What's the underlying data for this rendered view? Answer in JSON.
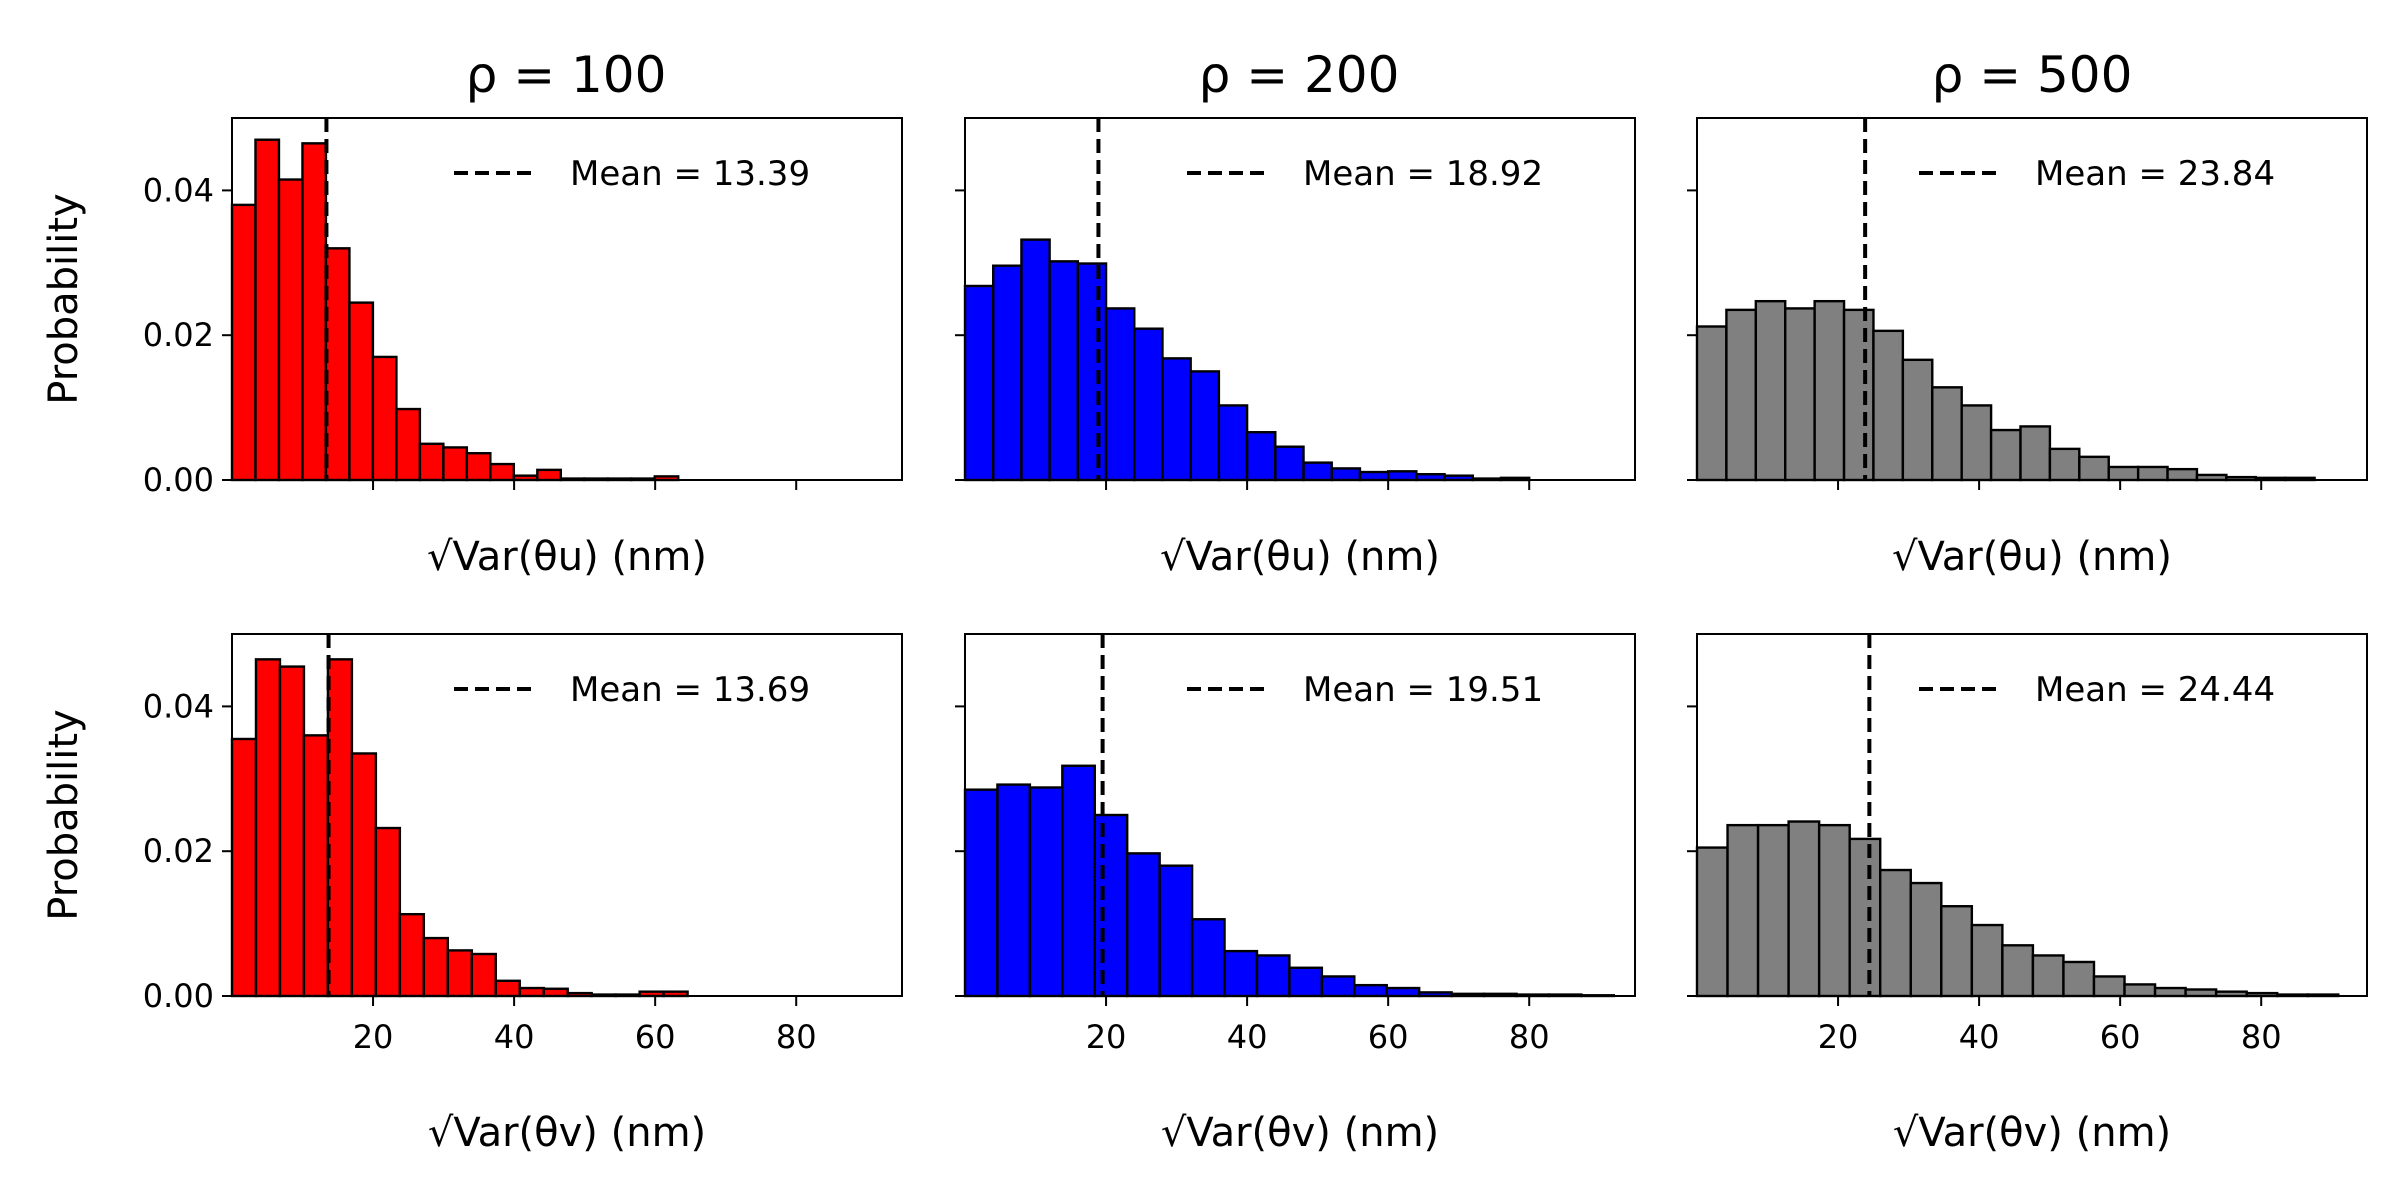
{
  "figure": {
    "column_titles": [
      "ρ = 100",
      "ρ = 200",
      "ρ = 500"
    ],
    "xlabel_rows": [
      "√Var(θu) (nm)",
      "√Var(θv) (nm)"
    ]
  },
  "chart_data": [
    {
      "type": "bar",
      "row": 0,
      "col": 0,
      "title": "ρ = 100",
      "xlabel": "√Var(θu) (nm)",
      "ylabel": "Probability",
      "color": "#ff0000",
      "bin_start": 0,
      "bin_width": 3.33,
      "values": [
        0.038,
        0.047,
        0.0415,
        0.0465,
        0.032,
        0.0245,
        0.017,
        0.0098,
        0.005,
        0.0045,
        0.0037,
        0.0022,
        0.0006,
        0.0014,
        0.0002,
        0.0002,
        0.0002,
        0.0002,
        0.0005
      ],
      "mean": 13.39,
      "legend": "Mean = 13.39",
      "xlim": [
        0,
        95
      ],
      "ylim": [
        0,
        0.05
      ],
      "yticks": [
        "0.00",
        "0.02",
        "0.04"
      ],
      "xticks": [
        20,
        40,
        60,
        80
      ],
      "show_xtick_labels": false
    },
    {
      "type": "bar",
      "row": 0,
      "col": 1,
      "title": "ρ = 200",
      "xlabel": "√Var(θu) (nm)",
      "ylabel": "",
      "color": "#0000ff",
      "bin_start": 0,
      "bin_width": 4.0,
      "values": [
        0.0268,
        0.0296,
        0.0332,
        0.0302,
        0.0299,
        0.0237,
        0.0209,
        0.0168,
        0.015,
        0.0103,
        0.0066,
        0.0046,
        0.0024,
        0.0016,
        0.0011,
        0.0012,
        0.0008,
        0.0006,
        0.0002,
        0.0003
      ],
      "mean": 18.92,
      "legend": "Mean = 18.92",
      "xlim": [
        0,
        95
      ],
      "ylim": [
        0,
        0.05
      ],
      "yticks": [
        "0.00",
        "0.02",
        "0.04"
      ],
      "xticks": [
        20,
        40,
        60,
        80
      ],
      "show_xtick_labels": false
    },
    {
      "type": "bar",
      "row": 0,
      "col": 2,
      "title": "ρ = 500",
      "xlabel": "√Var(θu) (nm)",
      "ylabel": "",
      "color": "#808080",
      "bin_start": 0,
      "bin_width": 4.17,
      "values": [
        0.0212,
        0.0235,
        0.0247,
        0.0237,
        0.0247,
        0.0235,
        0.0206,
        0.0166,
        0.0128,
        0.0103,
        0.0069,
        0.0074,
        0.0043,
        0.0032,
        0.0018,
        0.0018,
        0.0015,
        0.0007,
        0.0004,
        0.0003,
        0.0003
      ],
      "mean": 23.84,
      "legend": "Mean = 23.84",
      "xlim": [
        0,
        95
      ],
      "ylim": [
        0,
        0.05
      ],
      "yticks": [
        "0.00",
        "0.02",
        "0.04"
      ],
      "xticks": [
        20,
        40,
        60,
        80
      ],
      "show_xtick_labels": false
    },
    {
      "type": "bar",
      "row": 1,
      "col": 0,
      "title": "",
      "xlabel": "√Var(θv) (nm)",
      "ylabel": "Probability",
      "color": "#ff0000",
      "bin_start": 0,
      "bin_width": 3.4,
      "values": [
        0.0355,
        0.0465,
        0.0455,
        0.036,
        0.0465,
        0.0335,
        0.0232,
        0.0113,
        0.008,
        0.0063,
        0.0058,
        0.0021,
        0.0011,
        0.001,
        0.0004,
        0.0002,
        0.0002,
        0.0006,
        0.0006
      ],
      "mean": 13.69,
      "legend": "Mean = 13.69",
      "xlim": [
        0,
        95
      ],
      "ylim": [
        0,
        0.05
      ],
      "yticks": [
        "0.00",
        "0.02",
        "0.04"
      ],
      "xticks": [
        20,
        40,
        60,
        80
      ],
      "show_xtick_labels": true
    },
    {
      "type": "bar",
      "row": 1,
      "col": 1,
      "title": "",
      "xlabel": "√Var(θv) (nm)",
      "ylabel": "",
      "color": "#0000ff",
      "bin_start": 0,
      "bin_width": 4.6,
      "values": [
        0.0285,
        0.0292,
        0.0288,
        0.0318,
        0.025,
        0.0197,
        0.018,
        0.0106,
        0.0062,
        0.0056,
        0.0039,
        0.0027,
        0.0015,
        0.0011,
        0.0005,
        0.0003,
        0.0003,
        0.0002,
        0.0002,
        0.0001
      ],
      "mean": 19.51,
      "legend": "Mean = 19.51",
      "xlim": [
        0,
        95
      ],
      "ylim": [
        0,
        0.05
      ],
      "yticks": [
        "0.00",
        "0.02",
        "0.04"
      ],
      "xticks": [
        20,
        40,
        60,
        80
      ],
      "show_xtick_labels": true
    },
    {
      "type": "bar",
      "row": 1,
      "col": 2,
      "title": "",
      "xlabel": "√Var(θv) (nm)",
      "ylabel": "",
      "color": "#808080",
      "bin_start": 0,
      "bin_width": 4.33,
      "values": [
        0.0205,
        0.0236,
        0.0236,
        0.0241,
        0.0236,
        0.0217,
        0.0174,
        0.0156,
        0.0124,
        0.0098,
        0.007,
        0.0056,
        0.0047,
        0.0027,
        0.0016,
        0.0011,
        0.0009,
        0.0006,
        0.0004,
        0.0002,
        0.0002
      ],
      "mean": 24.44,
      "legend": "Mean = 24.44",
      "xlim": [
        0,
        95
      ],
      "ylim": [
        0,
        0.05
      ],
      "yticks": [
        "0.00",
        "0.02",
        "0.04"
      ],
      "xticks": [
        20,
        40,
        60,
        80
      ],
      "show_xtick_labels": true
    }
  ]
}
